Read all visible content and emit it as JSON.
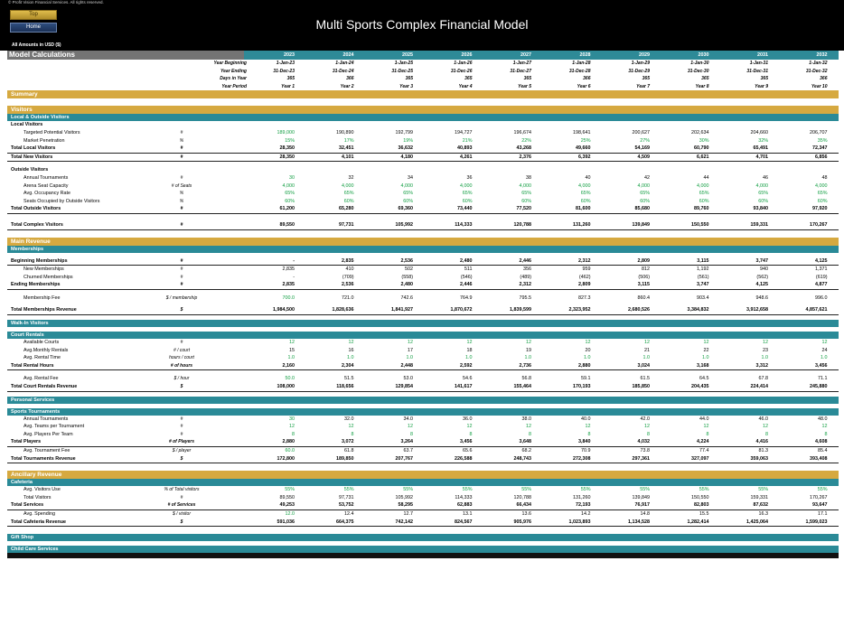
{
  "header": {
    "copyright": "© Profit Vision Financial Services. All rights reserved.",
    "top_button": "Top",
    "home_button": "Home",
    "title": "Multi Sports Complex Financial Model",
    "amounts_note": "All Amounts in  USD ($)"
  },
  "model_calc": {
    "label": "Model Calculations",
    "years": [
      "2023",
      "2024",
      "2025",
      "2026",
      "2027",
      "2028",
      "2029",
      "2030",
      "2031",
      "2032"
    ]
  },
  "timeline": [
    {
      "label": "Year Beginning",
      "values": [
        "1-Jan-23",
        "1-Jan-24",
        "1-Jan-25",
        "1-Jan-26",
        "1-Jan-27",
        "1-Jan-28",
        "1-Jan-29",
        "1-Jan-30",
        "1-Jan-31",
        "1-Jan-32"
      ]
    },
    {
      "label": "Year Ending",
      "values": [
        "31-Dec-23",
        "31-Dec-24",
        "31-Dec-25",
        "31-Dec-26",
        "31-Dec-27",
        "31-Dec-28",
        "31-Dec-29",
        "31-Dec-30",
        "31-Dec-31",
        "31-Dec-32"
      ]
    },
    {
      "label": "Days in Year",
      "values": [
        "365",
        "366",
        "365",
        "365",
        "365",
        "366",
        "365",
        "365",
        "365",
        "366"
      ]
    },
    {
      "label": "Year Period",
      "values": [
        "Year 1",
        "Year 2",
        "Year 3",
        "Year 4",
        "Year 5",
        "Year 6",
        "Year 7",
        "Year 8",
        "Year 9",
        "Year 10"
      ]
    }
  ],
  "labels": {
    "summary": "Summary",
    "visitors": "Visitors",
    "local_outside": "Local & Outside Visitors",
    "local_visitors": "Local Visitors",
    "outside_visitors": "Outside Visitors",
    "main_revenue": "Main Revenue",
    "memberships": "Memberships",
    "walkin": "Walk-In Visitors",
    "court_rentals": "Court Rentals",
    "personal_services": "Personal Services",
    "sports_tournaments": "Sports Tournaments",
    "ancillary_revenue": "Ancillary Revenue",
    "cafeteria": "Cafeteria",
    "gift_shop": "Gift Shop",
    "child_care": "Child Care Services"
  },
  "local_rows": [
    {
      "label": "Targeted Potential Visitors",
      "unit": "#",
      "style": "ind",
      "green_first": true,
      "values": [
        "189,000",
        "190,890",
        "192,799",
        "194,727",
        "196,674",
        "198,641",
        "200,627",
        "202,634",
        "204,660",
        "206,707"
      ]
    },
    {
      "label": "Market Penetration",
      "unit": "%",
      "style": "ind",
      "green_all": true,
      "values": [
        "15%",
        "17%",
        "19%",
        "21%",
        "22%",
        "25%",
        "27%",
        "30%",
        "32%",
        "35%"
      ]
    },
    {
      "label": "Total Local Visitors",
      "unit": "#",
      "style": "bold",
      "values": [
        "28,350",
        "32,451",
        "36,632",
        "40,893",
        "43,268",
        "49,660",
        "54,169",
        "60,790",
        "65,491",
        "72,347"
      ]
    },
    {
      "label": "Total New Visitors",
      "unit": "#",
      "style": "bold",
      "values": [
        "28,350",
        "4,101",
        "4,180",
        "4,261",
        "2,376",
        "6,392",
        "4,509",
        "6,621",
        "4,701",
        "6,856"
      ]
    }
  ],
  "outside_rows": [
    {
      "label": "Annual Tournaments",
      "unit": "#",
      "style": "ind",
      "green_first": true,
      "values": [
        "30",
        "32",
        "34",
        "36",
        "38",
        "40",
        "42",
        "44",
        "46",
        "48"
      ]
    },
    {
      "label": "Arena Seat Capacity",
      "unit": "# of Seats",
      "style": "ind",
      "green_all": true,
      "values": [
        "4,000",
        "4,000",
        "4,000",
        "4,000",
        "4,000",
        "4,000",
        "4,000",
        "4,000",
        "4,000",
        "4,000"
      ]
    },
    {
      "label": "Avg. Occupancy Rate",
      "unit": "%",
      "style": "ind",
      "green_all": true,
      "values": [
        "65%",
        "65%",
        "65%",
        "65%",
        "65%",
        "65%",
        "65%",
        "65%",
        "65%",
        "65%"
      ]
    },
    {
      "label": "Seats Occupied by Outside Visitors",
      "unit": "%",
      "style": "ind",
      "green_all": true,
      "values": [
        "60%",
        "60%",
        "60%",
        "60%",
        "60%",
        "60%",
        "60%",
        "60%",
        "60%",
        "60%"
      ]
    },
    {
      "label": "Total Outside Visitors",
      "unit": "#",
      "style": "bold",
      "values": [
        "61,200",
        "65,280",
        "69,360",
        "73,440",
        "77,520",
        "81,600",
        "85,680",
        "89,760",
        "93,840",
        "97,920"
      ]
    }
  ],
  "total_complex": {
    "label": "Total Complex Visitors",
    "unit": "#",
    "values": [
      "89,550",
      "97,731",
      "105,992",
      "114,333",
      "120,788",
      "131,260",
      "139,849",
      "150,550",
      "159,331",
      "170,267"
    ]
  },
  "membership_rows": [
    {
      "label": "Beginning Memberships",
      "unit": "#",
      "style": "bold",
      "values": [
        "-",
        "2,835",
        "2,536",
        "2,480",
        "2,446",
        "2,312",
        "2,809",
        "3,115",
        "3,747",
        "4,125"
      ]
    },
    {
      "label": "New Memberships",
      "unit": "#",
      "style": "ind",
      "values": [
        "2,835",
        "410",
        "502",
        "511",
        "356",
        "959",
        "812",
        "1,192",
        "940",
        "1,371"
      ]
    },
    {
      "label": "Churned Memberships",
      "unit": "#",
      "style": "ind",
      "values": [
        "-",
        "(709)",
        "(558)",
        "(546)",
        "(489)",
        "(462)",
        "(506)",
        "(561)",
        "(562)",
        "(619)"
      ]
    },
    {
      "label": "Ending Memberships",
      "unit": "#",
      "style": "bold",
      "values": [
        "2,835",
        "2,536",
        "2,480",
        "2,446",
        "2,312",
        "2,809",
        "3,115",
        "3,747",
        "4,125",
        "4,877"
      ]
    }
  ],
  "membership_fee": {
    "label": "Membership Fee",
    "unit": "$ / membership",
    "values": [
      "700.0",
      "721.0",
      "742.6",
      "764.9",
      "795.5",
      "827.3",
      "860.4",
      "903.4",
      "948.6",
      "996.0"
    ]
  },
  "membership_revenue": {
    "label": "Total Memberships Revenue",
    "unit": "$",
    "values": [
      "1,984,500",
      "1,828,636",
      "1,841,927",
      "1,870,672",
      "1,839,599",
      "2,323,952",
      "2,680,526",
      "3,384,832",
      "3,912,658",
      "4,857,621"
    ]
  },
  "court_rows": [
    {
      "label": "Available Courts",
      "unit": "#",
      "style": "ind",
      "green_all": true,
      "values": [
        "12",
        "12",
        "12",
        "12",
        "12",
        "12",
        "12",
        "12",
        "12",
        "12"
      ]
    },
    {
      "label": "Avg.Monthly Rentals",
      "unit": "# / court",
      "style": "ind",
      "values": [
        "15",
        "16",
        "17",
        "18",
        "19",
        "20",
        "21",
        "22",
        "23",
        "24"
      ]
    },
    {
      "label": "Avg. Rental Time",
      "unit": "hours / court",
      "style": "ind",
      "green_all": true,
      "values": [
        "1.0",
        "1.0",
        "1.0",
        "1.0",
        "1.0",
        "1.0",
        "1.0",
        "1.0",
        "1.0",
        "1.0"
      ]
    },
    {
      "label": "Total Rental Hours",
      "unit": "# of hours",
      "style": "bold",
      "values": [
        "2,160",
        "2,304",
        "2,448",
        "2,592",
        "2,736",
        "2,880",
        "3,024",
        "3,168",
        "3,312",
        "3,456"
      ]
    }
  ],
  "court_fee": {
    "label": "Avg. Rental Fee",
    "unit": "$ / hour",
    "values": [
      "50.0",
      "51.5",
      "53.0",
      "54.6",
      "56.8",
      "59.1",
      "61.5",
      "64.5",
      "67.8",
      "71.1"
    ]
  },
  "court_revenue": {
    "label": "Total Court Rentals Revenue",
    "unit": "$",
    "values": [
      "108,000",
      "118,656",
      "129,854",
      "141,617",
      "155,464",
      "170,193",
      "185,850",
      "204,435",
      "224,414",
      "245,880"
    ]
  },
  "tournament_rows": [
    {
      "label": "Annual Tournaments",
      "unit": "#",
      "style": "ind",
      "green_first": true,
      "values": [
        "30",
        "32.0",
        "34.0",
        "36.0",
        "38.0",
        "40.0",
        "42.0",
        "44.0",
        "46.0",
        "48.0"
      ]
    },
    {
      "label": "Avg. Teams per Tournament",
      "unit": "#",
      "style": "ind",
      "green_all": true,
      "values": [
        "12",
        "12",
        "12",
        "12",
        "12",
        "12",
        "12",
        "12",
        "12",
        "12"
      ]
    },
    {
      "label": "Avg. Players Per Team",
      "unit": "#",
      "style": "ind",
      "green_all": true,
      "values": [
        "8",
        "8",
        "8",
        "8",
        "8",
        "8",
        "8",
        "8",
        "8",
        "8"
      ]
    },
    {
      "label": "Total Players",
      "unit": "# of Players",
      "style": "bold",
      "values": [
        "2,880",
        "3,072",
        "3,264",
        "3,456",
        "3,648",
        "3,840",
        "4,032",
        "4,224",
        "4,416",
        "4,608"
      ]
    },
    {
      "label": "Avg. Tournament Fee",
      "unit": "$ / player",
      "style": "ind",
      "green_first": true,
      "values": [
        "60.0",
        "61.8",
        "63.7",
        "65.6",
        "68.2",
        "70.9",
        "73.8",
        "77.4",
        "81.3",
        "85.4"
      ]
    },
    {
      "label": "Total Tournaments Revenue",
      "unit": "$",
      "style": "bold",
      "values": [
        "172,800",
        "189,850",
        "207,767",
        "226,588",
        "248,743",
        "272,308",
        "297,361",
        "327,097",
        "359,063",
        "393,408"
      ]
    }
  ],
  "cafeteria_rows": [
    {
      "label": "Avg. Visitors Use",
      "unit": "% of Total visitors",
      "style": "ind",
      "green_all": true,
      "values": [
        "55%",
        "55%",
        "55%",
        "55%",
        "55%",
        "55%",
        "55%",
        "55%",
        "55%",
        "55%"
      ]
    },
    {
      "label": "Total Visitors",
      "unit": "#",
      "style": "ind",
      "values": [
        "89,550",
        "97,731",
        "105,992",
        "114,333",
        "120,788",
        "131,260",
        "139,849",
        "150,550",
        "159,331",
        "170,267"
      ]
    },
    {
      "label": "Total Services",
      "unit": "# of Services",
      "style": "bold",
      "values": [
        "49,253",
        "53,752",
        "58,295",
        "62,883",
        "66,434",
        "72,193",
        "76,917",
        "82,803",
        "87,632",
        "93,647"
      ]
    },
    {
      "label": "Avg. Spending",
      "unit": "$ / visitor",
      "style": "ind",
      "green_first": true,
      "values": [
        "12.0",
        "12.4",
        "12.7",
        "13.1",
        "13.6",
        "14.2",
        "14.8",
        "15.5",
        "16.3",
        "17.1"
      ]
    },
    {
      "label": "Total Cafeteria Revenue",
      "unit": "$",
      "style": "bold",
      "values": [
        "591,036",
        "664,375",
        "742,142",
        "824,567",
        "905,976",
        "1,023,893",
        "1,134,528",
        "1,282,414",
        "1,425,064",
        "1,599,023"
      ]
    }
  ],
  "colors": {
    "teal": "#2a8a97",
    "gold": "#d6a940",
    "header": "#000000",
    "green": "#0f9d40"
  }
}
